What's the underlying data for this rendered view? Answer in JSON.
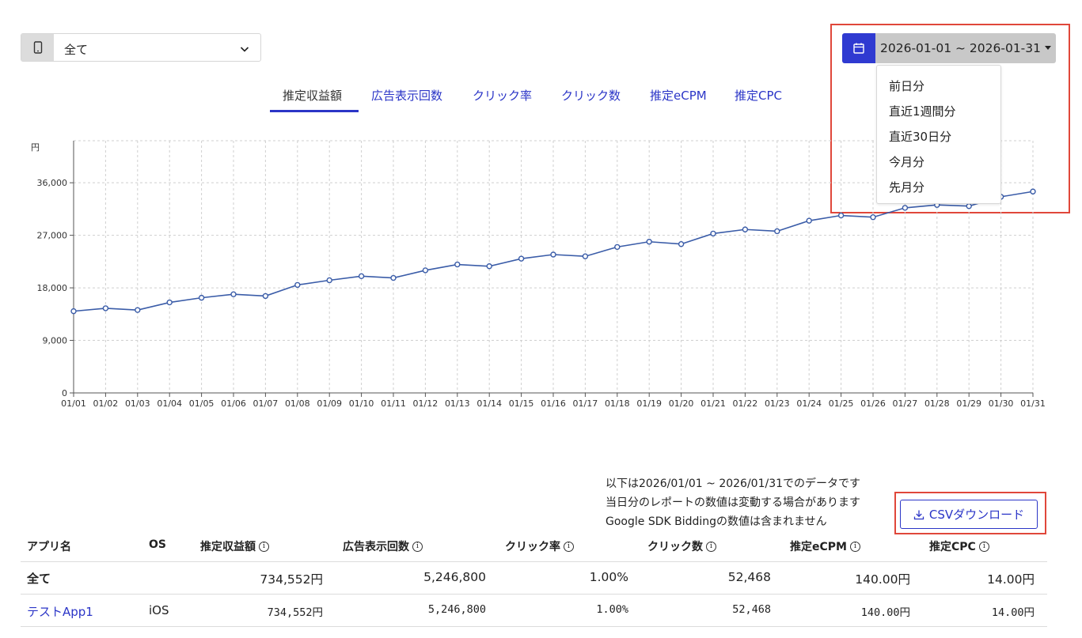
{
  "filters": {
    "device_select": {
      "value": "全て"
    }
  },
  "tabs": [
    {
      "label": "推定収益額",
      "active": true
    },
    {
      "label": "広告表示回数",
      "active": false
    },
    {
      "label": "クリック率",
      "active": false
    },
    {
      "label": "クリック数",
      "active": false
    },
    {
      "label": "推定eCPM",
      "active": false
    },
    {
      "label": "推定CPC",
      "active": false
    }
  ],
  "date_range": {
    "value": "2026-01-01 ~ 2026-01-31",
    "menu": [
      "前日分",
      "直近1週間分",
      "直近30日分",
      "今月分",
      "先月分"
    ]
  },
  "chart_data": {
    "type": "line",
    "ylabel": "円",
    "ylim": [
      0,
      43200
    ],
    "yticks": [
      0,
      9000,
      18000,
      27000,
      36000
    ],
    "ytick_labels": [
      "0",
      "9,000",
      "18,000",
      "27,000",
      "36,000"
    ],
    "grid": true,
    "categories": [
      "01/01",
      "01/02",
      "01/03",
      "01/04",
      "01/05",
      "01/06",
      "01/07",
      "01/08",
      "01/09",
      "01/10",
      "01/11",
      "01/12",
      "01/13",
      "01/14",
      "01/15",
      "01/16",
      "01/17",
      "01/18",
      "01/19",
      "01/20",
      "01/21",
      "01/22",
      "01/23",
      "01/24",
      "01/25",
      "01/26",
      "01/27",
      "01/28",
      "01/29",
      "01/30",
      "01/31"
    ],
    "series": [
      {
        "values": [
          14000,
          14500,
          14200,
          15500,
          16300,
          16900,
          16600,
          18500,
          19300,
          20000,
          19700,
          21000,
          22000,
          21700,
          23000,
          23700,
          23400,
          25000,
          25900,
          25500,
          27300,
          28000,
          27700,
          29500,
          30400,
          30100,
          31700,
          32200,
          32000,
          33600,
          34500
        ],
        "color": "#3a5ca8"
      }
    ]
  },
  "notes": [
    "以下は2026/01/01 ~ 2026/01/31でのデータです",
    "当日分のレポートの数値は変動する場合があります",
    "Google SDK Biddingの数値は含まれません"
  ],
  "csv_button": {
    "label": "CSVダウンロード"
  },
  "table": {
    "headers": [
      "アプリ名",
      "OS",
      "推定収益額",
      "広告表示回数",
      "クリック率",
      "クリック数",
      "推定eCPM",
      "推定CPC"
    ],
    "total_row": {
      "name": "全て",
      "os": "",
      "revenue": "734,552円",
      "impressions": "5,246,800",
      "ctr": "1.00%",
      "clicks": "52,468",
      "ecpm": "140.00円",
      "cpc": "14.00円"
    },
    "rows": [
      {
        "name": "テストApp1",
        "os": "iOS",
        "revenue": "734,552円",
        "impressions": "5,246,800",
        "ctr": "1.00%",
        "clicks": "52,468",
        "ecpm": "140.00円",
        "cpc": "14.00円"
      }
    ]
  },
  "colors": {
    "accent": "#2b35c7",
    "line": "#3a5ca8",
    "highlight_border": "#e0473a"
  }
}
